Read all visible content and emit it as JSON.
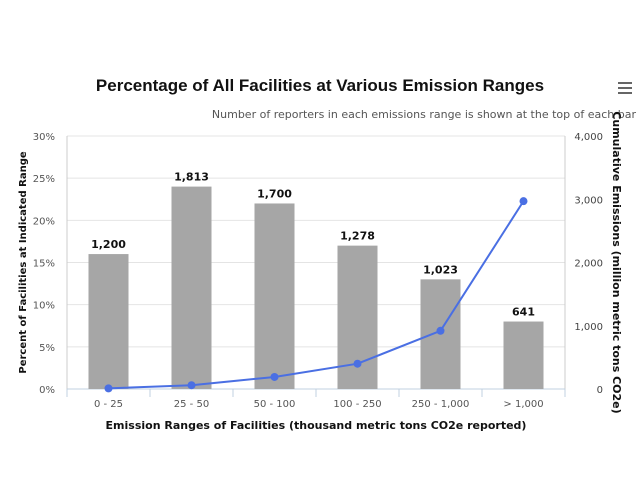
{
  "chart_data": {
    "type": "bar",
    "title": "Percentage of All Facilities at Various Emission Ranges",
    "subtitle": "Number of reporters in each emissions range is shown at the top of each bar",
    "xlabel": "Emission Ranges of Facilities (thousand metric tons CO2e reported)",
    "ylabel": "Percent of Facilities at Indicated Range",
    "y2label": "Cumulative Emissions (million metric tons CO2e)",
    "categories": [
      "0 - 25",
      "25 - 50",
      "50 - 100",
      "100 - 250",
      "250 - 1,000",
      "> 1,000"
    ],
    "series": [
      {
        "type": "bar",
        "axis": "left",
        "values": [
          16,
          24,
          22,
          17,
          13,
          8
        ],
        "data_labels": [
          "1,200",
          "1,813",
          "1,700",
          "1,278",
          "1,023",
          "641"
        ],
        "color": "#a6a6a6"
      },
      {
        "type": "line",
        "axis": "right",
        "values": [
          10,
          60,
          190,
          400,
          920,
          2970
        ],
        "color": "#4a6fe3"
      }
    ],
    "ylim": [
      0,
      30
    ],
    "yticks": [
      "0%",
      "5%",
      "10%",
      "15%",
      "20%",
      "25%",
      "30%"
    ],
    "y2lim": [
      0,
      4000
    ],
    "y2ticks": [
      "0",
      "1,000",
      "2,000",
      "3,000",
      "4,000"
    ],
    "grid": true
  },
  "menu_icon": "hamburger-icon"
}
